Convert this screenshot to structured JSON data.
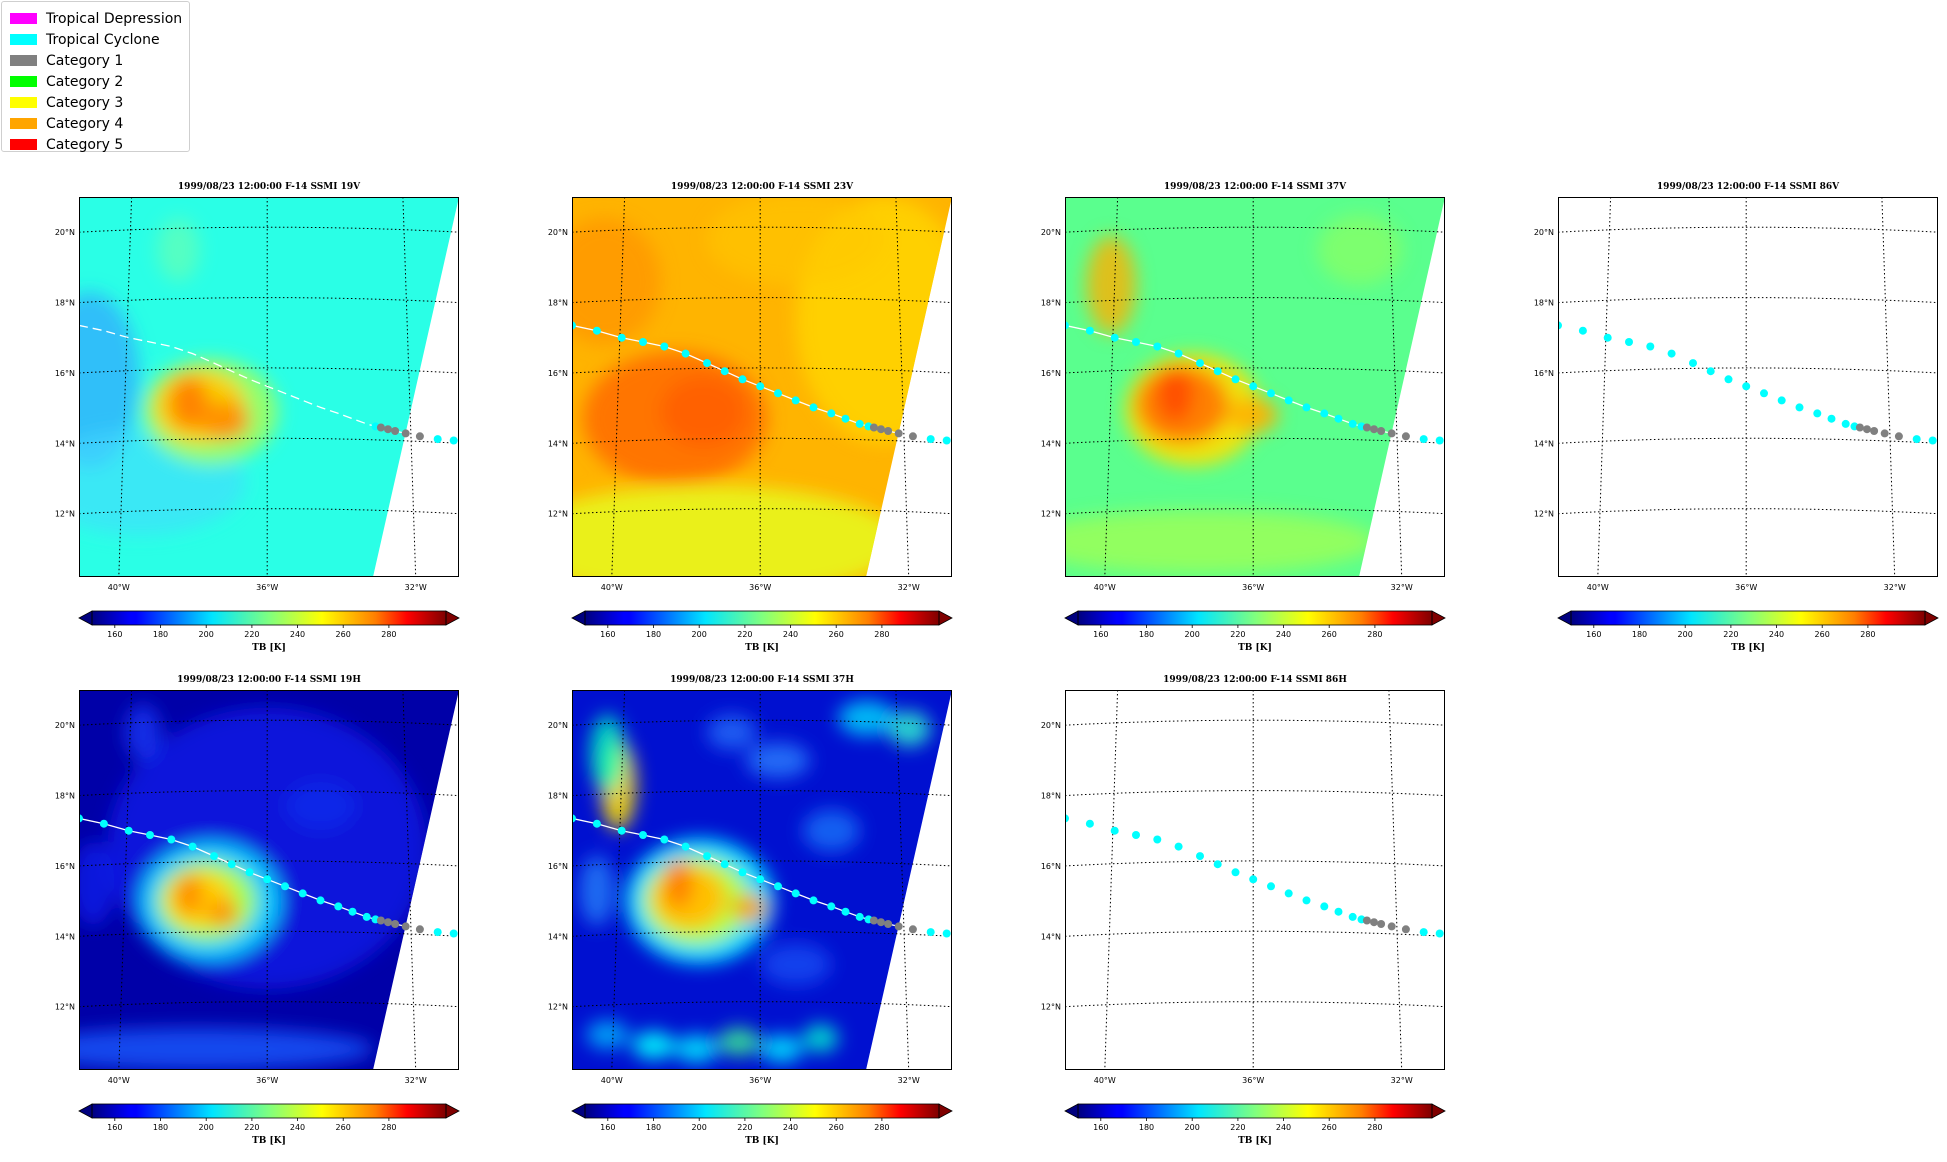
{
  "legend": {
    "items": [
      {
        "label": "Tropical Depression",
        "color": "#ff00ff"
      },
      {
        "label": "Tropical Cyclone",
        "color": "#00ffff"
      },
      {
        "label": "Category 1",
        "color": "#808080"
      },
      {
        "label": "Category 2",
        "color": "#00ff00"
      },
      {
        "label": "Category 3",
        "color": "#ffff00"
      },
      {
        "label": "Category 4",
        "color": "#ffa500"
      },
      {
        "label": "Category 5",
        "color": "#ff0000"
      }
    ]
  },
  "chart_data": [
    {
      "type": "heatmap",
      "title": "1999/08/23 12:00:00  F-14 SSMI 19V",
      "field": "moderate",
      "has_image": true,
      "track_line": "dashed",
      "colorbar": {
        "label": "TB [K]",
        "ticks": [
          160,
          180,
          200,
          220,
          240,
          260,
          280
        ],
        "range": [
          150,
          305
        ]
      }
    },
    {
      "type": "heatmap",
      "title": "1999/08/23 12:00:00  F-14 SSMI 23V",
      "field": "warm",
      "has_image": true,
      "track_line": "solid",
      "colorbar": {
        "label": "TB [K]",
        "ticks": [
          160,
          180,
          200,
          220,
          240,
          260,
          280
        ],
        "range": [
          150,
          305
        ]
      }
    },
    {
      "type": "heatmap",
      "title": "1999/08/23 12:00:00  F-14 SSMI 37V",
      "field": "green",
      "has_image": true,
      "track_line": "solid",
      "colorbar": {
        "label": "TB [K]",
        "ticks": [
          160,
          180,
          200,
          220,
          240,
          260,
          280
        ],
        "range": [
          150,
          305
        ]
      }
    },
    {
      "type": "heatmap",
      "title": "1999/08/23 12:00:00  F-14 SSMI 86V",
      "field": "none",
      "has_image": false,
      "track_line": "none",
      "colorbar": {
        "label": "TB [K]",
        "ticks": [
          160,
          180,
          200,
          220,
          240,
          260,
          280
        ],
        "range": [
          150,
          305
        ]
      }
    },
    {
      "type": "heatmap",
      "title": "1999/08/23 12:00:00  F-14 SSMI 19H",
      "field": "cold",
      "has_image": true,
      "track_line": "solid",
      "colorbar": {
        "label": "TB [K]",
        "ticks": [
          160,
          180,
          200,
          220,
          240,
          260,
          280
        ],
        "range": [
          150,
          305
        ]
      }
    },
    {
      "type": "heatmap",
      "title": "1999/08/23 12:00:00  F-14 SSMI 37H",
      "field": "cold_textured",
      "has_image": true,
      "track_line": "solid",
      "colorbar": {
        "label": "TB [K]",
        "ticks": [
          160,
          180,
          200,
          220,
          240,
          260,
          280
        ],
        "range": [
          150,
          305
        ]
      }
    },
    {
      "type": "heatmap",
      "title": "1999/08/23 12:00:00  F-14 SSMI 86H",
      "field": "none",
      "has_image": false,
      "track_line": "none",
      "colorbar": {
        "label": "TB [K]",
        "ticks": [
          160,
          180,
          200,
          220,
          240,
          260,
          280
        ],
        "range": [
          150,
          305
        ]
      }
    }
  ],
  "map": {
    "lon_range": [
      -41.3,
      -30.6
    ],
    "lat_range": [
      10.2,
      21.0
    ],
    "lat_ticks": [
      {
        "v": 12,
        "label": "12°N"
      },
      {
        "v": 14,
        "label": "14°N"
      },
      {
        "v": 16,
        "label": "16°N"
      },
      {
        "v": 18,
        "label": "18°N"
      },
      {
        "v": 20,
        "label": "20°N"
      }
    ],
    "lon_ticks": [
      {
        "v": -40,
        "label": "40°W"
      },
      {
        "v": -36,
        "label": "36°W"
      },
      {
        "v": -32,
        "label": "32°W"
      }
    ],
    "storm_center": [
      -37.6,
      14.9
    ],
    "track": [
      {
        "lon": -41.3,
        "lat": 17.35,
        "cat": "Tropical Cyclone"
      },
      {
        "lon": -40.6,
        "lat": 17.2,
        "cat": "Tropical Cyclone"
      },
      {
        "lon": -39.9,
        "lat": 17.0,
        "cat": "Tropical Cyclone"
      },
      {
        "lon": -39.3,
        "lat": 16.88,
        "cat": "Tropical Cyclone"
      },
      {
        "lon": -38.7,
        "lat": 16.75,
        "cat": "Tropical Cyclone"
      },
      {
        "lon": -38.1,
        "lat": 16.55,
        "cat": "Tropical Cyclone"
      },
      {
        "lon": -37.5,
        "lat": 16.28,
        "cat": "Tropical Cyclone"
      },
      {
        "lon": -37.0,
        "lat": 16.05,
        "cat": "Tropical Cyclone"
      },
      {
        "lon": -36.5,
        "lat": 15.82,
        "cat": "Tropical Cyclone"
      },
      {
        "lon": -36.0,
        "lat": 15.62,
        "cat": "Tropical Cyclone"
      },
      {
        "lon": -35.5,
        "lat": 15.42,
        "cat": "Tropical Cyclone"
      },
      {
        "lon": -35.0,
        "lat": 15.22,
        "cat": "Tropical Cyclone"
      },
      {
        "lon": -34.5,
        "lat": 15.02,
        "cat": "Tropical Cyclone"
      },
      {
        "lon": -34.0,
        "lat": 14.85,
        "cat": "Tropical Cyclone"
      },
      {
        "lon": -33.6,
        "lat": 14.7,
        "cat": "Tropical Cyclone"
      },
      {
        "lon": -33.2,
        "lat": 14.55,
        "cat": "Tropical Cyclone"
      },
      {
        "lon": -32.95,
        "lat": 14.48,
        "cat": "Tropical Cyclone"
      },
      {
        "lon": -32.8,
        "lat": 14.45,
        "cat": "Category 1"
      },
      {
        "lon": -32.6,
        "lat": 14.4,
        "cat": "Category 1"
      },
      {
        "lon": -32.4,
        "lat": 14.35,
        "cat": "Category 1"
      },
      {
        "lon": -32.1,
        "lat": 14.28,
        "cat": "Category 1"
      },
      {
        "lon": -31.7,
        "lat": 14.2,
        "cat": "Category 1"
      },
      {
        "lon": -31.2,
        "lat": 14.12,
        "cat": "Tropical Cyclone"
      },
      {
        "lon": -30.75,
        "lat": 14.08,
        "cat": "Tropical Cyclone"
      },
      {
        "lon": -30.3,
        "lat": 14.0,
        "cat": "Tropical Cyclone"
      }
    ]
  }
}
